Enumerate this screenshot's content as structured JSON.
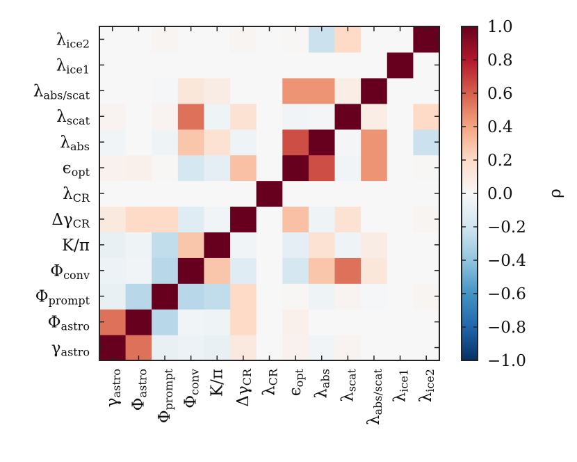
{
  "chart_data": {
    "type": "heatmap",
    "title": "",
    "xlabel": "",
    "ylabel": "",
    "variables": [
      {
        "base": "γ",
        "sub": "astro"
      },
      {
        "base": "Φ",
        "sub": "astro"
      },
      {
        "base": "Φ",
        "sub": "prompt"
      },
      {
        "base": "Φ",
        "sub": "conv"
      },
      {
        "base": "K/π",
        "sub": ""
      },
      {
        "base": "Δγ",
        "sub": "CR"
      },
      {
        "base": "λ",
        "sub": "CR"
      },
      {
        "base": "ϵ",
        "sub": "opt"
      },
      {
        "base": "λ",
        "sub": "abs"
      },
      {
        "base": "λ",
        "sub": "scat"
      },
      {
        "base": "λ",
        "sub": "abs/scat"
      },
      {
        "base": "λ",
        "sub": "ice1"
      },
      {
        "base": "λ",
        "sub": "ice2"
      }
    ],
    "matrix": [
      [
        1.0,
        0.55,
        -0.08,
        -0.06,
        -0.08,
        0.1,
        0.0,
        0.04,
        -0.03,
        0.03,
        0.0,
        0.0,
        0.0
      ],
      [
        0.55,
        1.0,
        -0.28,
        -0.03,
        -0.05,
        0.2,
        0.0,
        0.05,
        0.0,
        0.0,
        0.0,
        0.0,
        0.0
      ],
      [
        -0.08,
        -0.28,
        1.0,
        -0.28,
        -0.25,
        0.2,
        0.0,
        0.01,
        -0.05,
        0.03,
        -0.01,
        0.0,
        0.02
      ],
      [
        -0.06,
        -0.03,
        -0.28,
        1.0,
        0.28,
        -0.12,
        0.0,
        -0.18,
        0.28,
        0.55,
        0.12,
        0.0,
        0.0
      ],
      [
        -0.08,
        -0.05,
        -0.25,
        0.28,
        1.0,
        -0.03,
        0.0,
        -0.1,
        0.15,
        -0.05,
        0.08,
        0.0,
        0.0
      ],
      [
        0.1,
        0.2,
        0.2,
        -0.12,
        -0.03,
        1.0,
        0.0,
        0.3,
        -0.05,
        0.15,
        0.0,
        0.0,
        0.02
      ],
      [
        0.0,
        0.0,
        0.0,
        0.0,
        0.0,
        0.0,
        1.0,
        0.0,
        0.0,
        0.0,
        0.0,
        0.0,
        0.0
      ],
      [
        0.04,
        0.05,
        0.01,
        -0.18,
        -0.1,
        0.3,
        0.0,
        1.0,
        0.65,
        -0.03,
        0.45,
        0.0,
        0.01
      ],
      [
        -0.03,
        0.0,
        -0.05,
        0.28,
        0.15,
        -0.05,
        0.0,
        0.65,
        1.0,
        -0.02,
        0.45,
        0.0,
        -0.22
      ],
      [
        0.03,
        0.0,
        0.03,
        0.55,
        -0.05,
        0.15,
        0.0,
        -0.03,
        -0.02,
        1.0,
        0.07,
        0.0,
        0.2
      ],
      [
        0.0,
        0.0,
        -0.01,
        0.12,
        0.08,
        0.0,
        0.0,
        0.45,
        0.45,
        0.07,
        1.0,
        0.0,
        0.0
      ],
      [
        0.0,
        0.0,
        0.0,
        0.0,
        0.0,
        0.0,
        0.0,
        0.0,
        0.0,
        0.0,
        0.0,
        1.0,
        0.0
      ],
      [
        0.0,
        0.0,
        0.02,
        0.0,
        0.0,
        0.02,
        0.0,
        0.01,
        -0.22,
        0.2,
        0.0,
        0.0,
        1.0
      ]
    ],
    "colorbar": {
      "label": "ρ",
      "range": [
        -1.0,
        1.0
      ],
      "ticks": [
        "−1.0",
        "−0.8",
        "−0.6",
        "−0.4",
        "−0.2",
        "0.0",
        "0.2",
        "0.4",
        "0.6",
        "0.8",
        "1.0"
      ],
      "colormap": "RdBu_r",
      "stops": [
        "#053061",
        "#2166ac",
        "#4393c3",
        "#92c5de",
        "#d1e5f0",
        "#f7f7f7",
        "#fddbc7",
        "#f4a582",
        "#d6604d",
        "#b2182b",
        "#67001f"
      ]
    }
  }
}
